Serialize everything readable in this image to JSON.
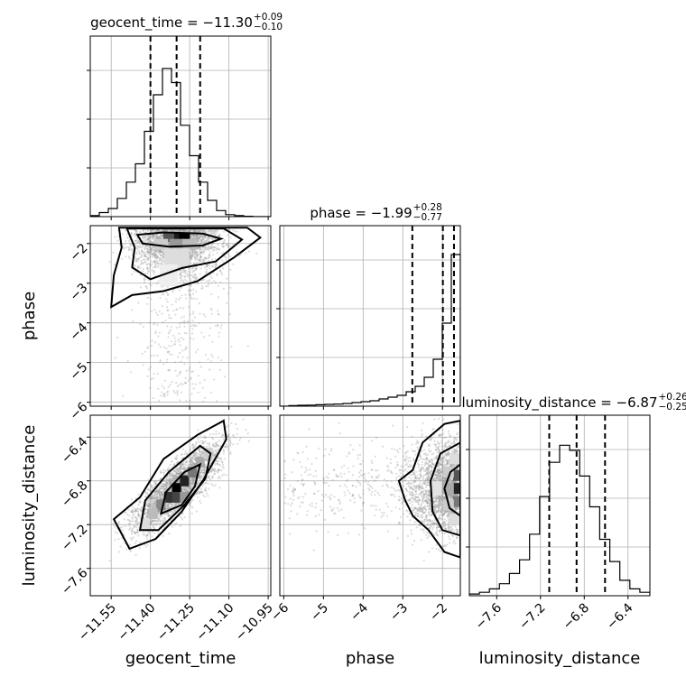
{
  "chart_data": {
    "type": "corner",
    "parameters": [
      {
        "name": "geocent_time",
        "label": "geocent_time",
        "median": "−11.30",
        "plus": "+0.09",
        "minus": "−0.10",
        "range": [
          -11.63,
          -10.94
        ],
        "ticks": [
          "−11.55",
          "−11.40",
          "−11.25",
          "−11.10",
          "−10.95"
        ],
        "tick_values": [
          -11.55,
          -11.4,
          -11.25,
          -11.1,
          -10.95
        ],
        "quantiles": [
          -11.4,
          -11.3,
          -11.21
        ]
      },
      {
        "name": "phase",
        "label": "phase",
        "median": "−1.99",
        "plus": "+0.28",
        "minus": "−0.77",
        "range": [
          -6.1,
          -1.55
        ],
        "ticks": [
          "−6",
          "−5",
          "−4",
          "−3",
          "−2"
        ],
        "tick_values": [
          -6,
          -5,
          -4,
          -3,
          -2
        ],
        "quantiles": [
          -2.76,
          -1.99,
          -1.71
        ]
      },
      {
        "name": "luminosity_distance",
        "label": "luminosity_distance",
        "median": "−6.87",
        "plus": "+0.26",
        "minus": "−0.25",
        "range": [
          -7.85,
          -6.2
        ],
        "ticks": [
          "−7.6",
          "−7.2",
          "−6.8",
          "−6.4"
        ],
        "tick_values": [
          -7.6,
          -7.2,
          -6.8,
          -6.4
        ],
        "quantiles": [
          -7.12,
          -6.87,
          -6.61
        ]
      }
    ],
    "hist_1d": [
      {
        "bins_from": -11.63,
        "bins_to": -10.94,
        "counts": [
          0.5,
          2,
          4,
          9,
          17,
          26,
          42,
          60,
          73,
          66,
          45,
          30,
          17,
          8,
          3,
          1,
          0.5,
          0.2,
          0,
          0
        ]
      },
      {
        "bins_from": -6.1,
        "bins_to": -1.55,
        "counts": [
          0,
          0.3,
          0.5,
          0.6,
          0.8,
          1,
          1.2,
          1.5,
          2,
          2.5,
          3,
          4,
          5,
          6,
          8,
          11,
          16,
          26,
          46,
          84
        ]
      },
      {
        "bins_from": -7.85,
        "bins_to": -6.2,
        "counts": [
          1,
          2,
          4,
          7,
          13,
          21,
          36,
          58,
          78,
          88,
          85,
          70,
          52,
          33,
          20,
          9,
          4,
          2
        ]
      }
    ],
    "hist_max": [
      80,
      90,
      95
    ]
  }
}
